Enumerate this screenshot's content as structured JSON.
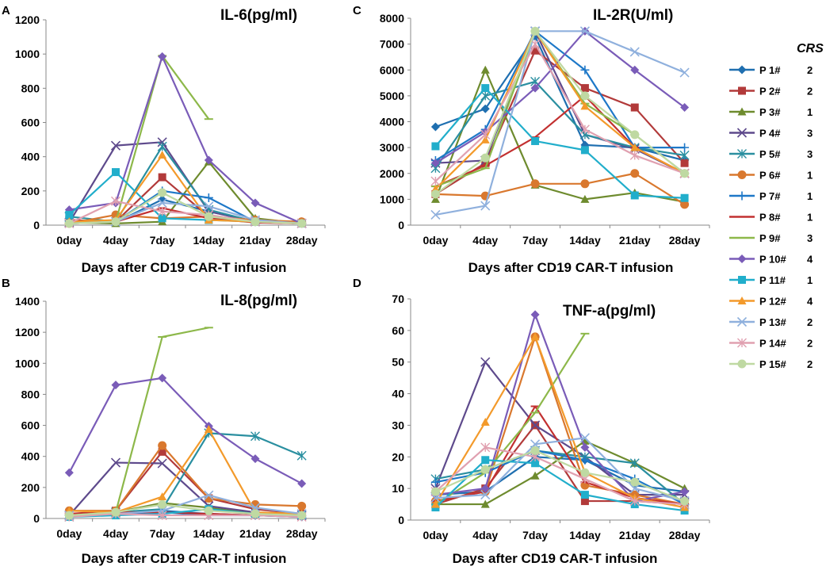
{
  "figure": {
    "legend_title": "CRS",
    "patients": [
      {
        "name": "P 1#",
        "crs": "2",
        "color": "#1F6FB0",
        "marker": "diamond"
      },
      {
        "name": "P 2#",
        "crs": "2",
        "color": "#B23A3A",
        "marker": "square"
      },
      {
        "name": "P 3#",
        "crs": "1",
        "color": "#6E8B2E",
        "marker": "triangle"
      },
      {
        "name": "P 4#",
        "crs": "3",
        "color": "#5E4A8C",
        "marker": "x"
      },
      {
        "name": "P 5#",
        "crs": "3",
        "color": "#2A8FA0",
        "marker": "star"
      },
      {
        "name": "P 6#",
        "crs": "1",
        "color": "#D9782E",
        "marker": "circle"
      },
      {
        "name": "P 7#",
        "crs": "1",
        "color": "#1E78C8",
        "marker": "plus"
      },
      {
        "name": "P 8#",
        "crs": "1",
        "color": "#C23030",
        "marker": "dash"
      },
      {
        "name": "P 9#",
        "crs": "3",
        "color": "#8DB84A",
        "marker": "dash"
      },
      {
        "name": "P 10#",
        "crs": "4",
        "color": "#7A5CB8",
        "marker": "diamond"
      },
      {
        "name": "P 11#",
        "crs": "1",
        "color": "#21AECB",
        "marker": "square"
      },
      {
        "name": "P 12#",
        "crs": "4",
        "color": "#F39A2B",
        "marker": "triangle"
      },
      {
        "name": "P 13#",
        "crs": "2",
        "color": "#8FB0DD",
        "marker": "x"
      },
      {
        "name": "P 14#",
        "crs": "2",
        "color": "#E0A0B0",
        "marker": "star"
      },
      {
        "name": "P 15#",
        "crs": "2",
        "color": "#BFD9A2",
        "marker": "circle"
      }
    ]
  },
  "chart_data": [
    {
      "panel": "A",
      "type": "line",
      "title": "IL-6(pg/ml)",
      "xlabel": "Days after CD19 CAR-T infusion",
      "categories": [
        "0day",
        "4day",
        "7day",
        "14day",
        "21day",
        "28day"
      ],
      "ylim": [
        0,
        1200
      ],
      "yticks": [
        0,
        200,
        400,
        600,
        800,
        1000,
        1200
      ],
      "series": [
        {
          "name": "P 1#",
          "values": [
            20,
            15,
            150,
            80,
            20,
            10
          ]
        },
        {
          "name": "P 2#",
          "values": [
            30,
            20,
            280,
            50,
            20,
            10
          ]
        },
        {
          "name": "P 3#",
          "values": [
            15,
            10,
            20,
            370,
            40,
            10
          ]
        },
        {
          "name": "P 4#",
          "values": [
            15,
            465,
            485,
            80,
            20,
            10
          ]
        },
        {
          "name": "P 5#",
          "values": [
            50,
            20,
            460,
            90,
            20,
            10
          ]
        },
        {
          "name": "P 6#",
          "values": [
            10,
            60,
            40,
            50,
            30,
            20
          ]
        },
        {
          "name": "P 7#",
          "values": [
            20,
            20,
            200,
            160,
            20,
            10
          ]
        },
        {
          "name": "P 8#",
          "values": [
            10,
            20,
            100,
            40,
            15,
            10
          ]
        },
        {
          "name": "P 9#",
          "values": [
            10,
            20,
            990,
            620,
            null,
            null
          ]
        },
        {
          "name": "P 10#",
          "values": [
            90,
            130,
            985,
            380,
            130,
            10
          ]
        },
        {
          "name": "P 11#",
          "values": [
            60,
            310,
            40,
            30,
            20,
            10
          ]
        },
        {
          "name": "P 12#",
          "values": [
            20,
            30,
            410,
            30,
            20,
            10
          ]
        },
        {
          "name": "P 13#",
          "values": [
            10,
            20,
            130,
            110,
            30,
            10
          ]
        },
        {
          "name": "P 14#",
          "values": [
            10,
            140,
            80,
            60,
            20,
            10
          ]
        },
        {
          "name": "P 15#",
          "values": [
            10,
            20,
            190,
            50,
            20,
            10
          ]
        }
      ]
    },
    {
      "panel": "B",
      "type": "line",
      "title": "IL-8(pg/ml)",
      "xlabel": "Days after CD19 CAR-T infusion",
      "categories": [
        "0day",
        "4day",
        "7day",
        "14day",
        "21day",
        "28day"
      ],
      "ylim": [
        0,
        1400
      ],
      "yticks": [
        0,
        200,
        400,
        600,
        800,
        1000,
        1200,
        1400
      ],
      "series": [
        {
          "name": "P 1#",
          "values": [
            20,
            30,
            50,
            30,
            20,
            10
          ]
        },
        {
          "name": "P 2#",
          "values": [
            30,
            50,
            430,
            130,
            60,
            30
          ]
        },
        {
          "name": "P 3#",
          "values": [
            20,
            40,
            100,
            70,
            30,
            20
          ]
        },
        {
          "name": "P 4#",
          "values": [
            20,
            360,
            355,
            80,
            40,
            20
          ]
        },
        {
          "name": "P 5#",
          "values": [
            10,
            40,
            60,
            550,
            530,
            405
          ]
        },
        {
          "name": "P 6#",
          "values": [
            50,
            50,
            470,
            130,
            90,
            80
          ]
        },
        {
          "name": "P 7#",
          "values": [
            20,
            30,
            40,
            20,
            20,
            10
          ]
        },
        {
          "name": "P 8#",
          "values": [
            30,
            40,
            40,
            30,
            20,
            20
          ]
        },
        {
          "name": "P 9#",
          "values": [
            20,
            40,
            1170,
            1230,
            null,
            null
          ]
        },
        {
          "name": "P 10#",
          "values": [
            295,
            860,
            905,
            595,
            385,
            225
          ]
        },
        {
          "name": "P 11#",
          "values": [
            10,
            20,
            30,
            60,
            30,
            20
          ]
        },
        {
          "name": "P 12#",
          "values": [
            50,
            40,
            140,
            575,
            40,
            30
          ]
        },
        {
          "name": "P 13#",
          "values": [
            20,
            30,
            50,
            150,
            70,
            30
          ]
        },
        {
          "name": "P 14#",
          "values": [
            10,
            30,
            20,
            20,
            20,
            10
          ]
        },
        {
          "name": "P 15#",
          "values": [
            20,
            40,
            90,
            50,
            30,
            20
          ]
        }
      ]
    },
    {
      "panel": "C",
      "type": "line",
      "title": "IL-2R(U/ml)",
      "xlabel": "Days after CD19 CAR-T infusion",
      "categories": [
        "0day",
        "4day",
        "7day",
        "14day",
        "21day",
        "28day"
      ],
      "ylim": [
        0,
        8000
      ],
      "yticks": [
        0,
        1000,
        2000,
        3000,
        4000,
        5000,
        6000,
        7000,
        8000
      ],
      "series": [
        {
          "name": "P 1#",
          "values": [
            3800,
            4500,
            7300,
            3100,
            3000,
            2500
          ]
        },
        {
          "name": "P 2#",
          "values": [
            1200,
            2400,
            6750,
            5300,
            4550,
            2400
          ]
        },
        {
          "name": "P 3#",
          "values": [
            1000,
            6000,
            1550,
            1000,
            1250,
            900
          ]
        },
        {
          "name": "P 4#",
          "values": [
            2400,
            2500,
            7500,
            3500,
            2950,
            2000
          ]
        },
        {
          "name": "P 5#",
          "values": [
            2200,
            5000,
            5550,
            3500,
            3000,
            2700
          ]
        },
        {
          "name": "P 6#",
          "values": [
            1200,
            1130,
            1600,
            1600,
            2000,
            800
          ]
        },
        {
          "name": "P 7#",
          "values": [
            2500,
            3700,
            7500,
            6000,
            3000,
            3000
          ]
        },
        {
          "name": "P 8#",
          "values": [
            1500,
            2300,
            3400,
            5000,
            3000,
            2000
          ]
        },
        {
          "name": "P 9#",
          "values": [
            1500,
            2200,
            7500,
            4700,
            3500,
            2000
          ]
        },
        {
          "name": "P 10#",
          "values": [
            2400,
            3600,
            5300,
            7500,
            6000,
            4550
          ]
        },
        {
          "name": "P 11#",
          "values": [
            3050,
            5300,
            3250,
            2900,
            1150,
            1050
          ]
        },
        {
          "name": "P 12#",
          "values": [
            1400,
            3300,
            7500,
            4600,
            3000,
            2000
          ]
        },
        {
          "name": "P 13#",
          "values": [
            400,
            750,
            7500,
            7500,
            6700,
            5900
          ]
        },
        {
          "name": "P 14#",
          "values": [
            1700,
            3500,
            7000,
            3700,
            2700,
            2000
          ]
        },
        {
          "name": "P 15#",
          "values": [
            1200,
            2600,
            7500,
            5000,
            3500,
            2000
          ]
        }
      ]
    },
    {
      "panel": "D",
      "type": "line",
      "title": "TNF-a(pg/ml)",
      "xlabel": "Days after CD19 CAR-T infusion",
      "categories": [
        "0day",
        "4day",
        "7day",
        "14day",
        "21day",
        "28day"
      ],
      "ylim": [
        0,
        70
      ],
      "yticks": [
        0,
        10,
        20,
        30,
        40,
        50,
        60,
        70
      ],
      "series": [
        {
          "name": "P 1#",
          "values": [
            8,
            9,
            20,
            19,
            11,
            9
          ]
        },
        {
          "name": "P 2#",
          "values": [
            5,
            10,
            30,
            6,
            6,
            5
          ]
        },
        {
          "name": "P 3#",
          "values": [
            5,
            5,
            14,
            25,
            18,
            10
          ]
        },
        {
          "name": "P 4#",
          "values": [
            10,
            50,
            30,
            20,
            8,
            8
          ]
        },
        {
          "name": "P 5#",
          "values": [
            13,
            16,
            22,
            20,
            18,
            5
          ]
        },
        {
          "name": "P 6#",
          "values": [
            6,
            9,
            58,
            11,
            8,
            5
          ]
        },
        {
          "name": "P 7#",
          "values": [
            12,
            15,
            22,
            19,
            13,
            5
          ]
        },
        {
          "name": "P 8#",
          "values": [
            6,
            9,
            36,
            12,
            7,
            5
          ]
        },
        {
          "name": "P 9#",
          "values": [
            5,
            15,
            34,
            59,
            null,
            null
          ]
        },
        {
          "name": "P 10#",
          "values": [
            8,
            10,
            65,
            23,
            6,
            9
          ]
        },
        {
          "name": "P 11#",
          "values": [
            4,
            19,
            18,
            8,
            5,
            3
          ]
        },
        {
          "name": "P 12#",
          "values": [
            5,
            31,
            58,
            15,
            7,
            4
          ]
        },
        {
          "name": "P 13#",
          "values": [
            7,
            8,
            24,
            26,
            10,
            6
          ]
        },
        {
          "name": "P 14#",
          "values": [
            9,
            23,
            20,
            13,
            6,
            5
          ]
        },
        {
          "name": "P 15#",
          "values": [
            9,
            16,
            22,
            15,
            12,
            6
          ]
        }
      ]
    }
  ]
}
